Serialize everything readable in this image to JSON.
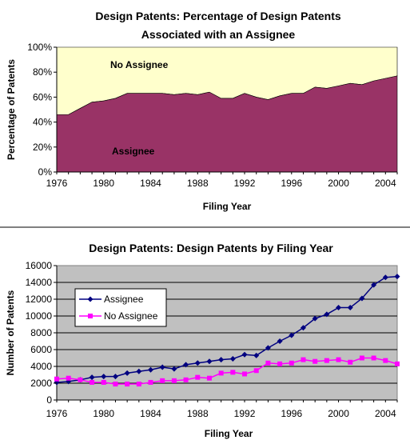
{
  "chart_data": [
    {
      "type": "area",
      "title_line1": "Design Patents: Percentage of Design Patents",
      "title_line2": "Associated with an Assignee",
      "xlabel": "Filing Year",
      "ylabel": "Percentage of Patents",
      "x_tick_labels": [
        "1976",
        "1980",
        "1984",
        "1988",
        "1992",
        "1996",
        "2000",
        "2004"
      ],
      "y_tick_labels": [
        "0%",
        "20%",
        "40%",
        "60%",
        "80%",
        "100%"
      ],
      "ylim": [
        0,
        100
      ],
      "xlim": [
        1976,
        2005
      ],
      "x": [
        1976,
        1977,
        1978,
        1979,
        1980,
        1981,
        1982,
        1983,
        1984,
        1985,
        1986,
        1987,
        1988,
        1989,
        1990,
        1991,
        1992,
        1993,
        1994,
        1995,
        1996,
        1997,
        1998,
        1999,
        2000,
        2001,
        2002,
        2003,
        2004,
        2005
      ],
      "series": [
        {
          "name": "Assignee",
          "values": [
            46,
            46,
            51,
            56,
            57,
            59,
            63,
            63,
            63,
            63,
            62,
            63,
            62,
            64,
            59,
            59,
            63,
            60,
            58,
            61,
            63,
            63,
            68,
            67,
            69,
            71,
            70,
            73,
            75,
            77
          ]
        },
        {
          "name": "No Assignee",
          "values": [
            54,
            54,
            49,
            44,
            43,
            41,
            37,
            37,
            37,
            37,
            38,
            37,
            38,
            36,
            41,
            41,
            37,
            40,
            42,
            39,
            37,
            37,
            32,
            33,
            31,
            29,
            30,
            27,
            25,
            23
          ]
        }
      ],
      "colors": {
        "assignee": "#993366",
        "no_assignee": "#FFFFCC"
      },
      "grid": false
    },
    {
      "type": "line",
      "title": "Design Patents: Design Patents by Filing Year",
      "xlabel": "Filing Year",
      "ylabel": "Number of Patents",
      "x_tick_labels": [
        "1976",
        "1980",
        "1984",
        "1988",
        "1992",
        "1996",
        "2000",
        "2004"
      ],
      "y_tick_labels": [
        "0",
        "2000",
        "4000",
        "6000",
        "8000",
        "10000",
        "12000",
        "14000",
        "16000"
      ],
      "ylim": [
        0,
        16000
      ],
      "xlim": [
        1976,
        2005
      ],
      "x": [
        1976,
        1977,
        1978,
        1979,
        1980,
        1981,
        1982,
        1983,
        1984,
        1985,
        1986,
        1987,
        1988,
        1989,
        1990,
        1991,
        1992,
        1993,
        1994,
        1995,
        1996,
        1997,
        1998,
        1999,
        2000,
        2001,
        2002,
        2003,
        2004,
        2005
      ],
      "series": [
        {
          "name": "Assignee",
          "color": "#000080",
          "marker": "diamond",
          "values": [
            2100,
            2200,
            2400,
            2700,
            2800,
            2800,
            3200,
            3400,
            3600,
            3900,
            3700,
            4200,
            4400,
            4600,
            4800,
            4900,
            5400,
            5300,
            6200,
            7000,
            7700,
            8600,
            9700,
            10200,
            11000,
            11000,
            12100,
            13700,
            14600,
            14700
          ]
        },
        {
          "name": "No Assignee",
          "color": "#FF00FF",
          "marker": "square",
          "values": [
            2500,
            2600,
            2400,
            2100,
            2100,
            1900,
            1900,
            1900,
            2100,
            2300,
            2300,
            2400,
            2700,
            2600,
            3200,
            3300,
            3100,
            3500,
            4400,
            4300,
            4400,
            4800,
            4600,
            4700,
            4800,
            4500,
            5000,
            5000,
            4700,
            4300
          ]
        }
      ],
      "legend": {
        "placement": "upper-left-inside",
        "items": [
          "Assignee",
          "No Assignee"
        ]
      },
      "grid": true,
      "plot_background": "#C0C0C0"
    }
  ]
}
